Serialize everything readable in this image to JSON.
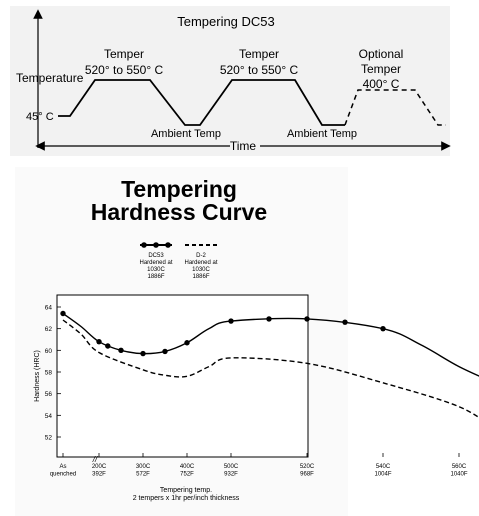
{
  "tempering_diagram": {
    "title": "Tempering DC53",
    "y_label": "Temperature",
    "x_label": "Time",
    "start_temp_label": "45° C",
    "temper_1": [
      "Temper",
      "520° to 550° C"
    ],
    "temper_2": [
      "Temper",
      "520° to 550° C"
    ],
    "optional_temper": [
      "Optional",
      "Temper",
      "400° C"
    ],
    "ambient_1": "Ambient Temp",
    "ambient_2": "Ambient Temp"
  },
  "chart_data": {
    "type": "line",
    "title_lines": [
      "Tempering",
      "Hardness Curve"
    ],
    "legend": [
      {
        "lines": [
          "DC53",
          "Hardened at",
          "1030C",
          "1886F"
        ],
        "style": "solid-markers"
      },
      {
        "lines": [
          "D-2",
          "Hardened at",
          "1030C",
          "1886F"
        ],
        "style": "dashed"
      }
    ],
    "ylabel": "Hardness (HRC)",
    "xlabel_lines": [
      "Tempering temp.",
      "2 tempers x 1hr per/inch thickness"
    ],
    "y_ticks": [
      52,
      54,
      56,
      58,
      60,
      62,
      64
    ],
    "ylim": [
      50,
      65
    ],
    "x_tick_labels": [
      {
        "x": 0,
        "lines": [
          "As",
          "quenched"
        ]
      },
      {
        "x": 200,
        "lines": [
          "200C",
          "392F"
        ]
      },
      {
        "x": 300,
        "lines": [
          "300C",
          "572F"
        ]
      },
      {
        "x": 400,
        "lines": [
          "400C",
          "752F"
        ]
      },
      {
        "x": 500,
        "lines": [
          "500C",
          "932F"
        ]
      },
      {
        "x": 520,
        "lines": [
          "520C",
          "968F"
        ]
      },
      {
        "x": 540,
        "lines": [
          "540C",
          "1004F"
        ]
      },
      {
        "x": 560,
        "lines": [
          "560C",
          "1040F"
        ]
      }
    ],
    "axis_break_symbol": "//",
    "series": [
      {
        "name": "DC53",
        "style": "solid",
        "markers": [
          {
            "x": 0,
            "y": 63.4
          },
          {
            "x": 200,
            "y": 60.8
          },
          {
            "x": 220,
            "y": 60.4
          },
          {
            "x": 250,
            "y": 60.0
          },
          {
            "x": 300,
            "y": 59.7
          },
          {
            "x": 350,
            "y": 59.9
          },
          {
            "x": 400,
            "y": 60.7
          },
          {
            "x": 500,
            "y": 62.7
          },
          {
            "x": 510,
            "y": 62.9
          },
          {
            "x": 520,
            "y": 62.9
          },
          {
            "x": 530,
            "y": 62.6
          },
          {
            "x": 540,
            "y": 62.0
          }
        ],
        "curve": [
          {
            "x": 0,
            "y": 63.4
          },
          {
            "x": 100,
            "y": 62.2
          },
          {
            "x": 200,
            "y": 60.8
          },
          {
            "x": 250,
            "y": 60.0
          },
          {
            "x": 300,
            "y": 59.7
          },
          {
            "x": 350,
            "y": 59.9
          },
          {
            "x": 400,
            "y": 60.7
          },
          {
            "x": 450,
            "y": 62.0
          },
          {
            "x": 500,
            "y": 62.7
          },
          {
            "x": 520,
            "y": 62.9
          },
          {
            "x": 540,
            "y": 62.0
          },
          {
            "x": 550,
            "y": 60.5
          },
          {
            "x": 560,
            "y": 58.5
          },
          {
            "x": 570,
            "y": 56.9
          }
        ]
      },
      {
        "name": "D-2",
        "style": "dashed",
        "curve": [
          {
            "x": 0,
            "y": 62.8
          },
          {
            "x": 100,
            "y": 61.5
          },
          {
            "x": 200,
            "y": 59.8
          },
          {
            "x": 300,
            "y": 58.2
          },
          {
            "x": 350,
            "y": 57.7
          },
          {
            "x": 400,
            "y": 57.6
          },
          {
            "x": 450,
            "y": 58.5
          },
          {
            "x": 500,
            "y": 59.3
          },
          {
            "x": 520,
            "y": 58.8
          },
          {
            "x": 540,
            "y": 57.0
          },
          {
            "x": 560,
            "y": 54.8
          },
          {
            "x": 570,
            "y": 52.6
          }
        ]
      }
    ]
  }
}
